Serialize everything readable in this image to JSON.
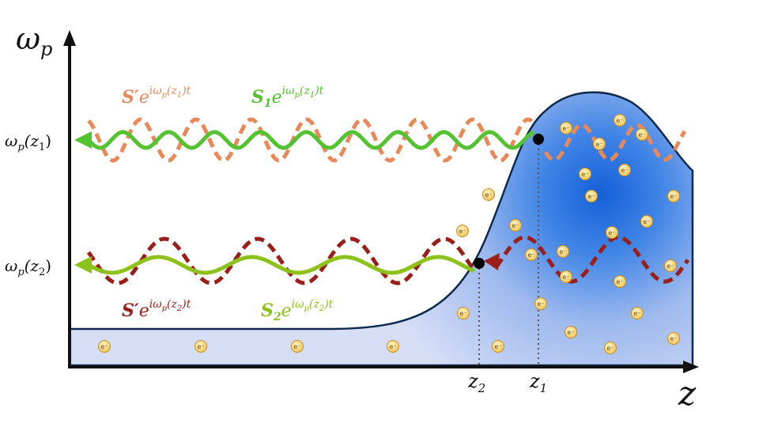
{
  "axes": {
    "y_symbol": "ω",
    "y_subscript": "p",
    "x_symbol": "z"
  },
  "y_ticks": [
    {
      "base": "ω",
      "sub": "p",
      "arg": "(z",
      "argsub": "1",
      "close": ")"
    },
    {
      "base": "ω",
      "sub": "p",
      "arg": "(z",
      "argsub": "2",
      "close": ")"
    }
  ],
  "x_ticks": [
    {
      "base": "z",
      "sub": "2"
    },
    {
      "base": "z",
      "sub": "1"
    }
  ],
  "labels": {
    "s_prime_1": {
      "base": "S",
      "mark": "′",
      "e": "e",
      "exp": "iω",
      "exp_sub": "p",
      "exp_rest": "(z",
      "exp_sub2": "1",
      "exp_close": ")t"
    },
    "s1": {
      "base": "S",
      "base_sub": "1",
      "e": "e",
      "exp": "iω",
      "exp_sub": "p",
      "exp_rest": "(z",
      "exp_sub2": "1",
      "exp_close": ")t"
    },
    "s_prime_2": {
      "base": "S",
      "mark": "′",
      "e": "e",
      "exp": "iω",
      "exp_sub": "p",
      "exp_rest": "(z",
      "exp_sub2": "2",
      "exp_close": ")t"
    },
    "s2": {
      "base": "S",
      "base_sub": "2",
      "e": "e",
      "exp": "iω",
      "exp_sub": "p",
      "exp_rest": "(z",
      "exp_sub2": "2",
      "exp_close": ")t"
    }
  },
  "electron_label": "e⁻",
  "colors": {
    "orange": "#E8895A",
    "green_bright": "#55C232",
    "green_yellow": "#8CC21A",
    "dark_red": "#9A1F1A",
    "plasma_dark": "#1560D8",
    "plasma_light": "#D6DEF6",
    "outline": "#0E2A4E",
    "electron_fill": "#F6D271",
    "electron_stroke": "#C98C20"
  }
}
